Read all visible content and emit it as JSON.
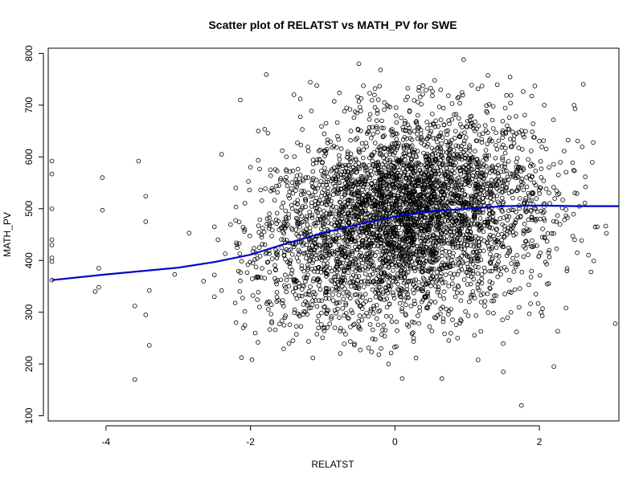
{
  "chart_data": {
    "type": "scatter",
    "title": "Scatter plot of RELATST vs MATH_PV for SWE",
    "xlabel": "RELATST",
    "ylabel": "MATH_PV",
    "xlim": [
      -4.8,
      3.1
    ],
    "ylim": [
      90,
      810
    ],
    "x_ticks": [
      -4,
      -2,
      0,
      2
    ],
    "y_ticks": [
      100,
      200,
      300,
      400,
      500,
      600,
      700,
      800
    ],
    "grid": false,
    "point_color": "#000000",
    "line_color": "#0000cc",
    "series": [
      {
        "type": "scatter",
        "marker": "open-circle",
        "approx_count": 4200,
        "x_center": 0.1,
        "x_spread": 0.95,
        "y_center": 485,
        "y_spread": 95,
        "outliers": [
          [
            -4.75,
            592
          ],
          [
            -4.75,
            567
          ],
          [
            -4.75,
            500
          ],
          [
            -4.75,
            440
          ],
          [
            -4.75,
            430
          ],
          [
            -4.75,
            405
          ],
          [
            -4.75,
            398
          ],
          [
            -4.75,
            362
          ],
          [
            -4.05,
            560
          ],
          [
            -4.05,
            497
          ],
          [
            -4.1,
            385
          ],
          [
            -4.1,
            348
          ],
          [
            -4.15,
            340
          ],
          [
            -3.55,
            592
          ],
          [
            -3.45,
            524
          ],
          [
            -3.45,
            475
          ],
          [
            -3.4,
            342
          ],
          [
            -3.6,
            312
          ],
          [
            -3.45,
            295
          ],
          [
            -3.4,
            236
          ],
          [
            -3.6,
            170
          ],
          [
            -3.05,
            373
          ],
          [
            -2.85,
            453
          ],
          [
            -2.65,
            360
          ],
          [
            -2.5,
            465
          ],
          [
            -2.45,
            440
          ],
          [
            -2.4,
            342
          ],
          [
            -2.35,
            413
          ],
          [
            -2.4,
            605
          ],
          [
            -2.5,
            372
          ],
          [
            -2.5,
            330
          ],
          [
            -2.15,
            413
          ],
          [
            -2.15,
            340
          ],
          [
            -2.0,
            580
          ],
          [
            -2.2,
            280
          ],
          [
            -2.1,
            270
          ],
          [
            0.1,
            172
          ],
          [
            0.65,
            172
          ],
          [
            1.5,
            185
          ],
          [
            1.75,
            120
          ],
          [
            2.2,
            195
          ],
          [
            0.95,
            788
          ],
          [
            0.55,
            748
          ],
          [
            -0.5,
            780
          ],
          [
            -0.2,
            768
          ],
          [
            3.05,
            278
          ]
        ]
      },
      {
        "type": "line",
        "name": "",
        "x": [
          -4.75,
          -4.0,
          -3.0,
          -2.5,
          -2.0,
          -1.5,
          -1.0,
          -0.5,
          0.0,
          0.5,
          1.0,
          1.5,
          2.0,
          2.5,
          3.1
        ],
        "y": [
          362,
          373,
          386,
          397,
          411,
          433,
          453,
          470,
          485,
          495,
          500,
          505,
          506,
          505,
          505
        ]
      }
    ]
  }
}
